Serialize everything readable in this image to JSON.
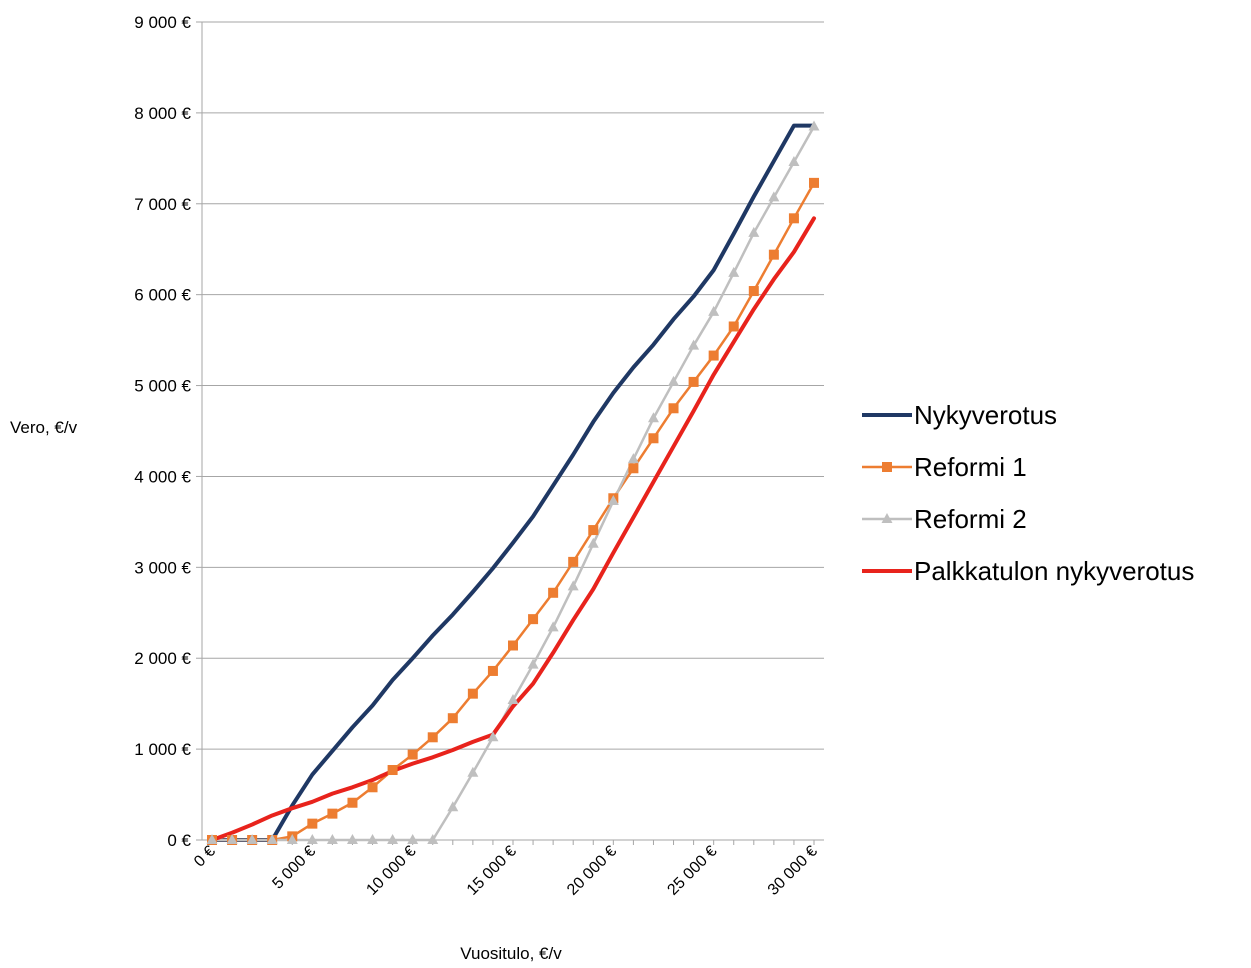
{
  "chart_data": {
    "type": "line",
    "xlabel": "Vuositulo, €/v",
    "ylabel": "Vero, €/v",
    "xlim": [
      0,
      30000
    ],
    "ylim": [
      0,
      9000
    ],
    "x_ticks": [
      0,
      5000,
      10000,
      15000,
      20000,
      25000,
      30000
    ],
    "x_tick_labels": [
      "0 €",
      "5 000 €",
      "10 000 €",
      "15 000 €",
      "20 000 €",
      "25 000 €",
      "30 000 €"
    ],
    "y_ticks": [
      0,
      1000,
      2000,
      3000,
      4000,
      5000,
      6000,
      7000,
      8000,
      9000
    ],
    "y_tick_labels": [
      "0 €",
      "1 000 €",
      "2 000 €",
      "3 000 €",
      "4 000 €",
      "5 000 €",
      "6 000 €",
      "7 000 €",
      "8 000 €",
      "9 000 €"
    ],
    "grid": "horizontal",
    "legend_position": "right",
    "series": [
      {
        "name": "Nykyverotus",
        "color": "#1f3864",
        "marker": "none",
        "x": [
          0,
          1000,
          2000,
          3000,
          4000,
          5000,
          6000,
          7000,
          8000,
          9000,
          10000,
          11000,
          12000,
          13000,
          14000,
          15000,
          16000,
          17000,
          18000,
          19000,
          20000,
          21000,
          22000,
          23000,
          24000,
          25000,
          26000,
          27000,
          28000,
          29000,
          30000
        ],
        "values": [
          0,
          0,
          0,
          0,
          380,
          720,
          980,
          1240,
          1480,
          1760,
          2000,
          2250,
          2480,
          2730,
          2990,
          3270,
          3560,
          3900,
          4240,
          4600,
          4920,
          5200,
          5450,
          5730,
          5980,
          6270,
          6670,
          7080,
          7470,
          7860,
          7860
        ]
      },
      {
        "name": "Reformi 1",
        "color": "#ed7d31",
        "marker": "square",
        "x": [
          0,
          1000,
          2000,
          3000,
          4000,
          5000,
          6000,
          7000,
          8000,
          9000,
          10000,
          11000,
          12000,
          13000,
          14000,
          15000,
          16000,
          17000,
          18000,
          19000,
          20000,
          21000,
          22000,
          23000,
          24000,
          25000,
          26000,
          27000,
          28000,
          29000,
          30000
        ],
        "values": [
          0,
          0,
          0,
          0,
          40,
          180,
          290,
          410,
          580,
          770,
          940,
          1130,
          1340,
          1610,
          1860,
          2140,
          2430,
          2720,
          3060,
          3410,
          3760,
          4090,
          4420,
          4750,
          5040,
          5330,
          5650,
          6040,
          6440,
          6840,
          7230
        ]
      },
      {
        "name": "Reformi 2",
        "color": "#bfbfbf",
        "marker": "triangle",
        "x": [
          0,
          1000,
          2000,
          3000,
          4000,
          5000,
          6000,
          7000,
          8000,
          9000,
          10000,
          11000,
          12000,
          13000,
          14000,
          15000,
          16000,
          17000,
          18000,
          19000,
          20000,
          21000,
          22000,
          23000,
          24000,
          25000,
          26000,
          27000,
          28000,
          29000,
          30000
        ],
        "values": [
          0,
          0,
          0,
          0,
          0,
          0,
          0,
          0,
          0,
          0,
          0,
          0,
          360,
          740,
          1130,
          1540,
          1930,
          2340,
          2790,
          3260,
          3730,
          4190,
          4640,
          5040,
          5440,
          5810,
          6240,
          6680,
          7070,
          7460,
          7850
        ]
      },
      {
        "name": "Palkkatulon nykyverotus",
        "color": "#e8231c",
        "marker": "none",
        "x": [
          0,
          1000,
          2000,
          3000,
          4000,
          5000,
          6000,
          7000,
          8000,
          9000,
          10000,
          11000,
          12000,
          13000,
          14000,
          15000,
          16000,
          17000,
          18000,
          19000,
          20000,
          21000,
          22000,
          23000,
          24000,
          25000,
          26000,
          27000,
          28000,
          29000,
          30000
        ],
        "values": [
          0,
          80,
          170,
          270,
          350,
          420,
          510,
          580,
          660,
          760,
          840,
          910,
          990,
          1080,
          1160,
          1470,
          1720,
          2060,
          2420,
          2760,
          3160,
          3550,
          3940,
          4330,
          4720,
          5120,
          5480,
          5840,
          6170,
          6470,
          6840
        ]
      }
    ]
  }
}
